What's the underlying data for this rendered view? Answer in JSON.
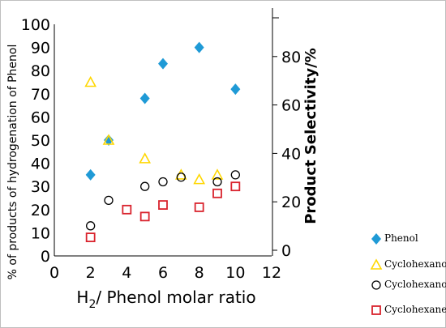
{
  "chart_data": {
    "type": "scatter",
    "title": "",
    "xlabel_main": "H",
    "xlabel_sub": "2",
    "xlabel_rest": "/ Phenol molar ratio",
    "ylabel": "% of products of hydrogenation of Phenol",
    "y2label": "Product Selectivity/%",
    "xlim": [
      0,
      12
    ],
    "ylim": [
      0,
      100
    ],
    "y2lim": [
      0,
      100
    ],
    "xticks": [
      "0",
      "2",
      "4",
      "6",
      "8",
      "10",
      "12"
    ],
    "yticks": [
      "0",
      "10",
      "20",
      "30",
      "40",
      "50",
      "60",
      "70",
      "80",
      "90",
      "100"
    ],
    "y2ticks": [
      "0",
      "20",
      "40",
      "60",
      "80"
    ],
    "grid": false,
    "legend": "right",
    "series": [
      {
        "name": "Phenol",
        "marker": "diamond",
        "color": "#1f9ad6",
        "x": [
          2,
          3,
          5,
          6,
          8,
          10
        ],
        "y": [
          35,
          50,
          68,
          83,
          90,
          72
        ]
      },
      {
        "name": "Cyclohexanone",
        "marker": "triangle",
        "color": "#ffd700",
        "x": [
          2,
          3,
          5,
          7,
          8,
          9
        ],
        "y": [
          75,
          50,
          42,
          35,
          33,
          35
        ]
      },
      {
        "name": "Cyclohexanol",
        "marker": "circle",
        "color": "#000000",
        "x": [
          2,
          3,
          5,
          6,
          7,
          9,
          10
        ],
        "y": [
          13,
          24,
          30,
          32,
          34,
          32,
          35
        ]
      },
      {
        "name": "Cyclohexane",
        "marker": "square",
        "color": "#d9232d",
        "x": [
          2,
          4,
          5,
          6,
          8,
          9,
          10
        ],
        "y": [
          8,
          20,
          17,
          22,
          21,
          27,
          30
        ]
      }
    ]
  }
}
